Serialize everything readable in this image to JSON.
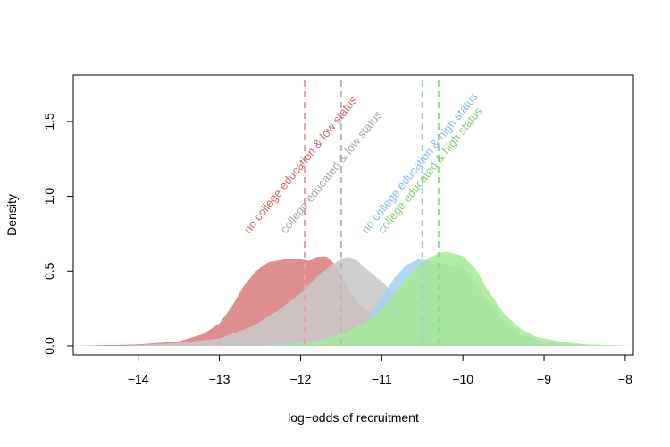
{
  "chart_data": {
    "type": "area",
    "title": "",
    "xlabel": "log−odds of recruitment",
    "ylabel": "Density",
    "xlim": [
      -14.8,
      -7.9
    ],
    "ylim": [
      -0.06,
      1.81
    ],
    "x_ticks": [
      {
        "value": -14,
        "label": "−14"
      },
      {
        "value": -13,
        "label": "−13"
      },
      {
        "value": -12,
        "label": "−12"
      },
      {
        "value": -11,
        "label": "−11"
      },
      {
        "value": -10,
        "label": "−10"
      },
      {
        "value": -9,
        "label": "−9"
      },
      {
        "value": -8,
        "label": "−8"
      }
    ],
    "y_ticks": [
      {
        "value": 0.0,
        "label": "0.0"
      },
      {
        "value": 0.5,
        "label": "0.5"
      },
      {
        "value": 1.0,
        "label": "1.0"
      },
      {
        "value": 1.5,
        "label": "1.5"
      }
    ],
    "grid": false,
    "series": [
      {
        "name": "no college education & low status",
        "fill": "#d97e7e",
        "line": "#e8a0a0",
        "label_color": "#cc6666",
        "mean": -11.95,
        "points": [
          [
            -14.8,
            0.0
          ],
          [
            -14.0,
            0.01
          ],
          [
            -13.5,
            0.03
          ],
          [
            -13.2,
            0.08
          ],
          [
            -13.0,
            0.15
          ],
          [
            -12.85,
            0.26
          ],
          [
            -12.7,
            0.4
          ],
          [
            -12.55,
            0.5
          ],
          [
            -12.4,
            0.56
          ],
          [
            -12.2,
            0.58
          ],
          [
            -12.0,
            0.58
          ],
          [
            -11.9,
            0.57
          ],
          [
            -11.8,
            0.59
          ],
          [
            -11.7,
            0.6
          ],
          [
            -11.6,
            0.56
          ],
          [
            -11.5,
            0.47
          ],
          [
            -11.4,
            0.37
          ],
          [
            -11.3,
            0.29
          ],
          [
            -11.2,
            0.24
          ],
          [
            -11.0,
            0.18
          ],
          [
            -10.8,
            0.11
          ],
          [
            -10.6,
            0.06
          ],
          [
            -10.4,
            0.03
          ],
          [
            -10.0,
            0.01
          ],
          [
            -9.5,
            0.0
          ]
        ]
      },
      {
        "name": "college educated & low status",
        "fill": "#c8c8c8",
        "line": "#b8b8b8",
        "label_color": "#a8a8a8",
        "mean": -11.5,
        "points": [
          [
            -14.2,
            0.0
          ],
          [
            -13.5,
            0.02
          ],
          [
            -13.0,
            0.05
          ],
          [
            -12.6,
            0.13
          ],
          [
            -12.3,
            0.23
          ],
          [
            -12.0,
            0.35
          ],
          [
            -11.8,
            0.46
          ],
          [
            -11.6,
            0.55
          ],
          [
            -11.5,
            0.58
          ],
          [
            -11.4,
            0.59
          ],
          [
            -11.3,
            0.57
          ],
          [
            -11.2,
            0.52
          ],
          [
            -11.0,
            0.43
          ],
          [
            -10.8,
            0.33
          ],
          [
            -10.6,
            0.25
          ],
          [
            -10.4,
            0.18
          ],
          [
            -10.2,
            0.13
          ],
          [
            -10.0,
            0.1
          ],
          [
            -9.6,
            0.05
          ],
          [
            -9.2,
            0.02
          ],
          [
            -8.6,
            0.0
          ]
        ]
      },
      {
        "name": "no college education & high status",
        "fill": "#a8d0f0",
        "line": "#a0c8e8",
        "label_color": "#88bbe8",
        "mean": -10.5,
        "points": [
          [
            -12.6,
            0.0
          ],
          [
            -12.0,
            0.02
          ],
          [
            -11.5,
            0.06
          ],
          [
            -11.2,
            0.15
          ],
          [
            -11.0,
            0.32
          ],
          [
            -10.85,
            0.45
          ],
          [
            -10.7,
            0.54
          ],
          [
            -10.55,
            0.58
          ],
          [
            -10.4,
            0.57
          ],
          [
            -10.2,
            0.55
          ],
          [
            -10.0,
            0.52
          ],
          [
            -9.85,
            0.42
          ],
          [
            -9.7,
            0.3
          ],
          [
            -9.5,
            0.17
          ],
          [
            -9.3,
            0.08
          ],
          [
            -9.0,
            0.03
          ],
          [
            -8.5,
            0.01
          ],
          [
            -8.0,
            0.0
          ]
        ]
      },
      {
        "name": "college educated & high status",
        "fill": "#aae898",
        "line": "#98dc88",
        "label_color": "#88cc77",
        "mean": -10.3,
        "points": [
          [
            -12.3,
            0.0
          ],
          [
            -11.8,
            0.03
          ],
          [
            -11.4,
            0.1
          ],
          [
            -11.1,
            0.19
          ],
          [
            -10.9,
            0.3
          ],
          [
            -10.7,
            0.45
          ],
          [
            -10.5,
            0.56
          ],
          [
            -10.3,
            0.62
          ],
          [
            -10.2,
            0.63
          ],
          [
            -10.0,
            0.6
          ],
          [
            -9.85,
            0.52
          ],
          [
            -9.7,
            0.38
          ],
          [
            -9.5,
            0.22
          ],
          [
            -9.3,
            0.12
          ],
          [
            -9.1,
            0.06
          ],
          [
            -8.8,
            0.03
          ],
          [
            -8.5,
            0.01
          ],
          [
            -7.9,
            0.0
          ]
        ]
      }
    ]
  }
}
